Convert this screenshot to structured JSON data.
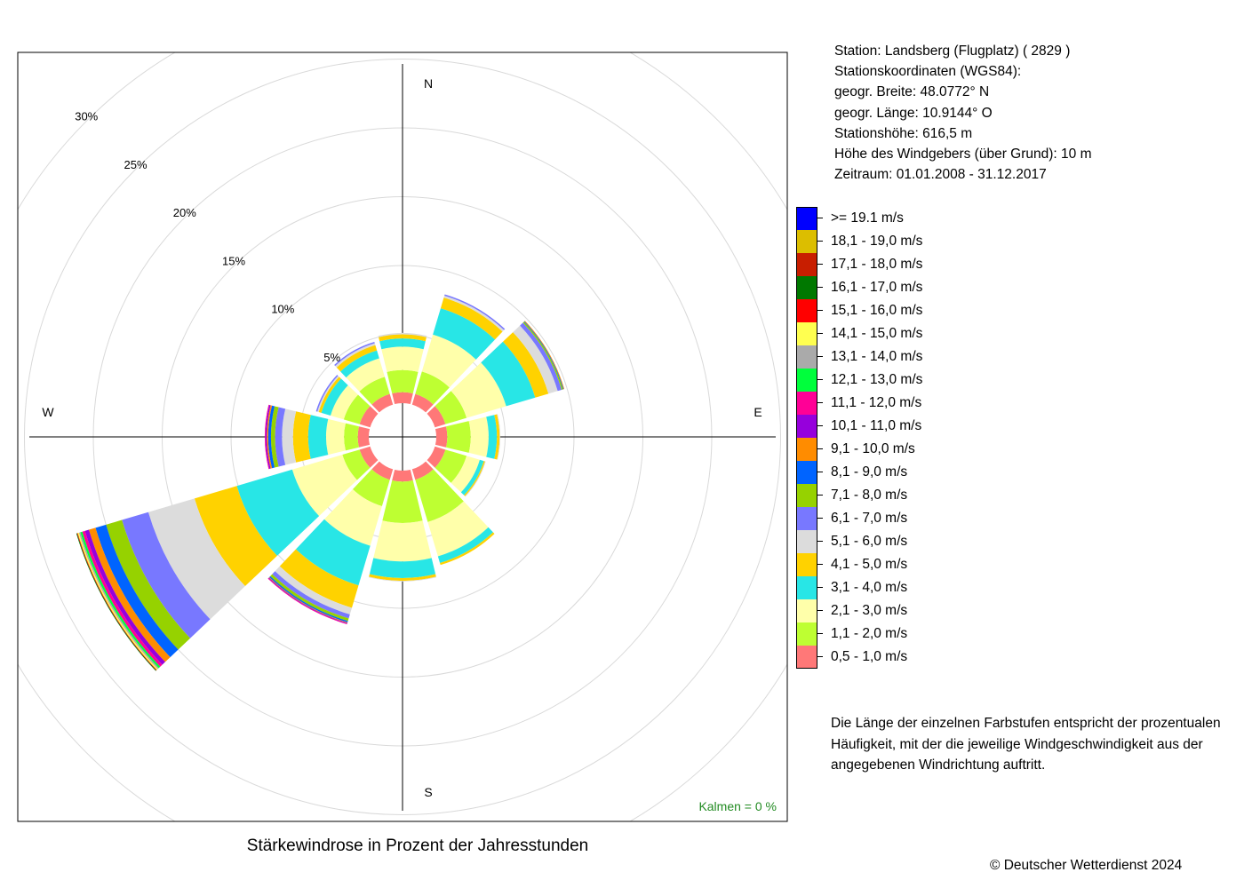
{
  "station": {
    "line1": "Station:  Landsberg (Flugplatz)  ( 2829 )",
    "line2": "Stationskoordinaten (WGS84):",
    "line3": "geogr. Breite: 48.0772° N",
    "line4": "geogr. Länge: 10.9144° O",
    "line5": "Stationshöhe: 616,5 m",
    "line6": "Höhe des Windgebers (über Grund): 10 m",
    "line7": "Zeitraum: 01.01.2008 - 31.12.2017"
  },
  "note": {
    "line1": "Die Länge der einzelnen Farbstufen entspricht der prozentualen",
    "line2": "Häufigkeit, mit der die jeweilige Windgeschwindigkeit aus der",
    "line3": "angegebenen Windrichtung auftritt."
  },
  "copyright": "© Deutscher Wetterdienst  2024",
  "chart_data": {
    "type": "wind-rose",
    "title": "Stärkewindrose in Prozent der Jahresstunden",
    "calm_label": "Kalmen  =  0 %",
    "directions": [
      "N",
      "E",
      "S",
      "W"
    ],
    "sector_angles_deg": [
      0,
      30,
      60,
      90,
      120,
      150,
      180,
      210,
      240,
      270,
      300,
      330
    ],
    "radial_ticks": [
      5,
      10,
      15,
      20,
      25,
      30
    ],
    "radial_tick_labels": [
      "5%",
      "10%",
      "15%",
      "20%",
      "25%",
      "30%"
    ],
    "rmax": 30,
    "speed_classes": [
      {
        "label": "0,5 - 1,0 m/s",
        "color": "#ff7878"
      },
      {
        "label": "1,1 - 2,0 m/s",
        "color": "#beff32"
      },
      {
        "label": "2,1 - 3,0 m/s",
        "color": "#ffffaa"
      },
      {
        "label": "3,1 - 4,0 m/s",
        "color": "#28e6e6"
      },
      {
        "label": "4,1 - 5,0 m/s",
        "color": "#ffd200"
      },
      {
        "label": "5,1 - 6,0 m/s",
        "color": "#dcdcdc"
      },
      {
        "label": "6,1 - 7,0 m/s",
        "color": "#7878ff"
      },
      {
        "label": "7,1 - 8,0 m/s",
        "color": "#96d200"
      },
      {
        "label": "8,1 - 9,0 m/s",
        "color": "#0064ff"
      },
      {
        "label": "9,1 - 10,0 m/s",
        "color": "#ff8c00"
      },
      {
        "label": "10,1 - 11,0 m/s",
        "color": "#9600dc"
      },
      {
        "label": "11,1 - 12,0 m/s",
        "color": "#ff0096"
      },
      {
        "label": "12,1 - 13,0 m/s",
        "color": "#00ff3c"
      },
      {
        "label": "13,1 - 14,0 m/s",
        "color": "#aaaaaa"
      },
      {
        "label": "14,1 - 15,0 m/s",
        "color": "#ffff50"
      },
      {
        "label": "15,1 - 16,0 m/s",
        "color": "#ff0000"
      },
      {
        "label": "16,1 - 17,0 m/s",
        "color": "#007800"
      },
      {
        "label": "17,1 - 18,0 m/s",
        "color": "#c81e00"
      },
      {
        "label": "18,1 - 19,0 m/s",
        "color": "#dcbe00"
      },
      {
        "label": ">= 19.1 m/s",
        "color": "#0000ff"
      }
    ],
    "series": [
      {
        "direction_deg": 0,
        "values": [
          0.8,
          1.6,
          1.7,
          0.6,
          0.3,
          0.1
        ]
      },
      {
        "direction_deg": 30,
        "values": [
          0.8,
          1.7,
          2.8,
          2.0,
          0.8,
          0.15,
          0.1
        ]
      },
      {
        "direction_deg": 60,
        "values": [
          0.8,
          1.6,
          3.0,
          2.2,
          1.0,
          0.7,
          0.3,
          0.1,
          0.05,
          0.05
        ]
      },
      {
        "direction_deg": 90,
        "values": [
          0.8,
          1.7,
          1.3,
          0.6,
          0.2,
          0.05
        ]
      },
      {
        "direction_deg": 120,
        "values": [
          0.8,
          1.6,
          1.0,
          0.3,
          0.1,
          0.05
        ]
      },
      {
        "direction_deg": 150,
        "values": [
          0.8,
          3.2,
          2.6,
          0.5,
          0.15
        ]
      },
      {
        "direction_deg": 180,
        "values": [
          0.8,
          3.0,
          2.8,
          1.2,
          0.2,
          0.05
        ]
      },
      {
        "direction_deg": 210,
        "values": [
          0.8,
          2.0,
          3.0,
          3.0,
          1.7,
          0.5,
          0.3,
          0.2,
          0.1,
          0.05,
          0.05,
          0.05
        ]
      },
      {
        "direction_deg": 240,
        "values": [
          0.8,
          1.3,
          3.8,
          4.2,
          3.2,
          3.5,
          2.0,
          1.2,
          0.8,
          0.5,
          0.3,
          0.2,
          0.15,
          0.1,
          0.1,
          0.05,
          0.05
        ]
      },
      {
        "direction_deg": 270,
        "values": [
          0.8,
          1.0,
          1.3,
          1.3,
          1.1,
          0.8,
          0.5,
          0.3,
          0.2,
          0.1,
          0.1,
          0.05
        ]
      },
      {
        "direction_deg": 300,
        "values": [
          0.8,
          1.2,
          1.0,
          0.7,
          0.2,
          0.1,
          0.1
        ]
      },
      {
        "direction_deg": 330,
        "values": [
          0.8,
          1.3,
          1.4,
          0.6,
          0.4,
          0.15,
          0.1
        ]
      }
    ]
  }
}
